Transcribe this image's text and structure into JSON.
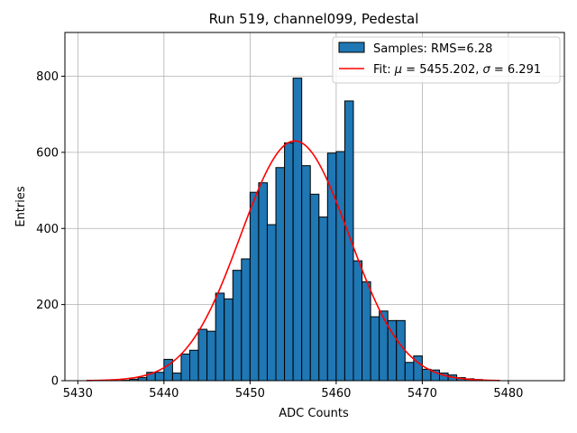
{
  "chart_data": {
    "type": "bar",
    "title": "Run 519, channel099, Pedestal",
    "xlabel": "ADC Counts",
    "ylabel": "Entries",
    "xlim": [
      5428.5,
      5486.5
    ],
    "ylim": [
      0,
      915
    ],
    "xticks": [
      5430,
      5440,
      5450,
      5460,
      5470,
      5480
    ],
    "yticks": [
      0,
      200,
      400,
      600,
      800
    ],
    "grid": true,
    "legend_position": "top-right",
    "histogram": {
      "name": "Samples: RMS=6.28",
      "color": "#1f77b4",
      "edgecolor": "#000000",
      "bin_edges": [
        5431,
        5432,
        5433,
        5434,
        5435,
        5436,
        5437,
        5438,
        5439,
        5440,
        5441,
        5442,
        5443,
        5444,
        5445,
        5446,
        5447,
        5448,
        5449,
        5450,
        5451,
        5452,
        5453,
        5454,
        5455,
        5456,
        5457,
        5458,
        5459,
        5460,
        5461,
        5462,
        5463,
        5464,
        5465,
        5466,
        5467,
        5468,
        5469,
        5470,
        5471,
        5472,
        5473,
        5474,
        5475,
        5476,
        5477,
        5478,
        5479
      ],
      "counts": [
        0,
        0,
        0,
        0,
        1,
        4,
        8,
        22,
        22,
        56,
        20,
        70,
        80,
        135,
        130,
        230,
        215,
        290,
        320,
        495,
        520,
        410,
        560,
        625,
        795,
        565,
        490,
        430,
        598,
        602,
        735,
        315,
        260,
        168,
        183,
        158,
        158,
        48,
        65,
        30,
        28,
        20,
        15,
        8,
        5,
        3,
        1,
        0
      ]
    },
    "fit": {
      "name": "Fit: μ = 5455.202, σ = 6.291",
      "label_prefix": "Fit: ",
      "mu_symbol": "μ",
      "mu_text": " = 5455.202, ",
      "sigma_symbol": "σ",
      "sigma_text": " = 6.291",
      "color": "#ff0000",
      "mu": 5455.202,
      "sigma": 6.291,
      "amplitude": 630,
      "x_range": [
        5431,
        5479
      ]
    }
  }
}
